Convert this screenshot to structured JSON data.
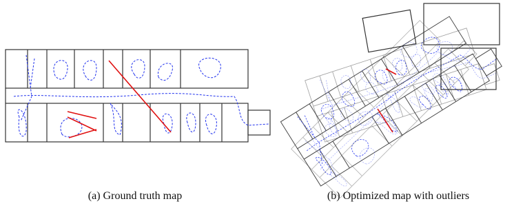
{
  "figures": [
    {
      "caption": "(a) Ground truth map"
    },
    {
      "caption": "(b) Optimized map with outliers"
    }
  ]
}
